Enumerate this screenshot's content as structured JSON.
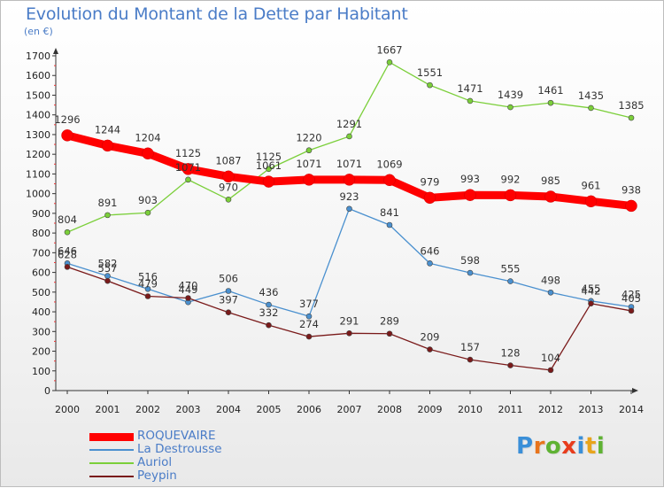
{
  "header": {
    "title": "Evolution du Montant de la Dette par Habitant",
    "unit": "(en €)"
  },
  "logo": {
    "text": "Proxiti",
    "letters": [
      "P",
      "r",
      "o",
      "x",
      "i",
      "t",
      "i"
    ],
    "colors": [
      "#3a8fd8",
      "#e8741c",
      "#5fb233",
      "#e83c1c",
      "#3a8fd8",
      "#e8a41c",
      "#5fb233"
    ]
  },
  "chart_data": {
    "type": "line",
    "title": "Evolution du Montant de la Dette par Habitant",
    "ylabel": "(en €)",
    "xlabel": "",
    "categories": [
      "2000",
      "2001",
      "2002",
      "2003",
      "2004",
      "2005",
      "2006",
      "2007",
      "2008",
      "2009",
      "2010",
      "2011",
      "2012",
      "2013",
      "2014"
    ],
    "ylim": [
      0,
      1700
    ],
    "yticks": [
      0,
      100,
      200,
      300,
      400,
      500,
      600,
      700,
      800,
      900,
      1000,
      1100,
      1200,
      1300,
      1400,
      1500,
      1600,
      1700
    ],
    "grid": false,
    "legend_position": "bottom-left",
    "series": [
      {
        "name": "ROQUEVAIRE",
        "color": "#ff0000",
        "emphasis": true,
        "values": [
          1296,
          1244,
          1204,
          1125,
          1087,
          1061,
          1071,
          1071,
          1069,
          979,
          993,
          992,
          985,
          961,
          938
        ]
      },
      {
        "name": "La Destrousse",
        "color": "#4a90cf",
        "emphasis": false,
        "values": [
          646,
          582,
          516,
          449,
          506,
          436,
          377,
          923,
          841,
          646,
          598,
          555,
          498,
          455,
          425
        ]
      },
      {
        "name": "Auriol",
        "color": "#7bcf3a",
        "emphasis": false,
        "values": [
          804,
          891,
          903,
          1071,
          970,
          1125,
          1220,
          1291,
          1667,
          1551,
          1471,
          1439,
          1461,
          1435,
          1385
        ]
      },
      {
        "name": "Peypin",
        "color": "#7a1a1a",
        "emphasis": false,
        "values": [
          628,
          557,
          479,
          470,
          397,
          332,
          274,
          291,
          289,
          209,
          157,
          128,
          104,
          442,
          405
        ]
      }
    ]
  }
}
